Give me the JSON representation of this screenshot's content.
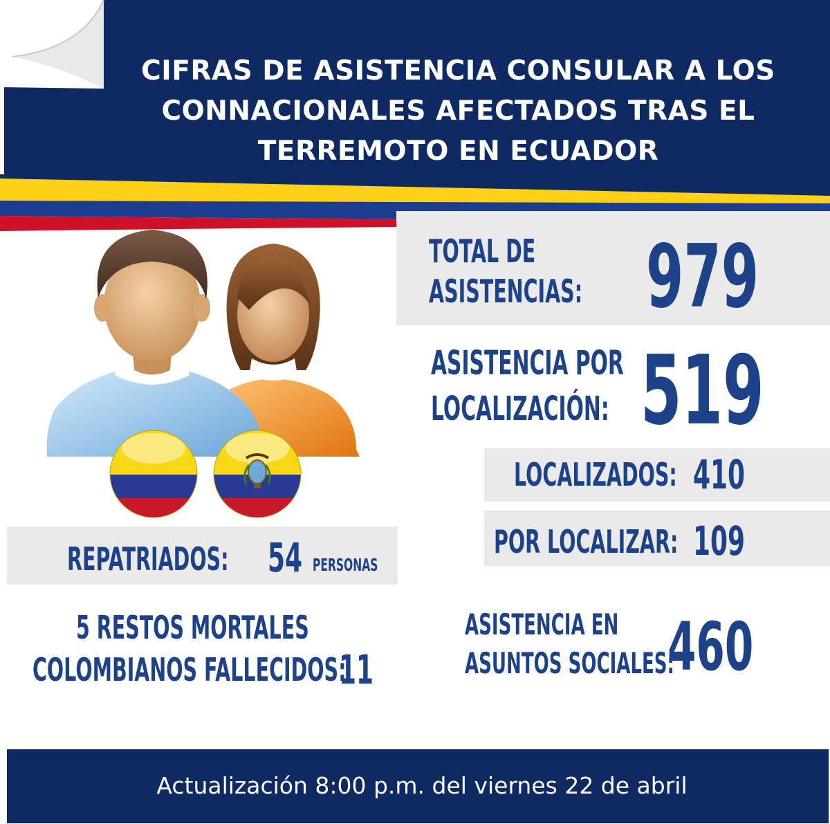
{
  "header": {
    "title_lines": [
      "CIFRAS DE ASISTENCIA CONSULAR A LOS",
      "CONNACIONALES AFECTADOS TRAS EL",
      "TERREMOTO EN ECUADOR"
    ]
  },
  "stats": {
    "total": {
      "label_lines": [
        "TOTAL DE",
        "ASISTENCIAS:"
      ],
      "value": "979"
    },
    "localizacion": {
      "label_lines": [
        "ASISTENCIA POR",
        "LOCALIZACIÓN:"
      ],
      "value": "519"
    },
    "localizados": {
      "label": "LOCALIZADOS:",
      "value": "410"
    },
    "por_localizar": {
      "label": "POR LOCALIZAR:",
      "value": "109"
    },
    "repatriados": {
      "label": "REPATRIADOS:",
      "value": "54",
      "unit": "PERSONAS"
    },
    "restos": {
      "line1": "5 RESTOS MORTALES",
      "label": "COLOMBIANOS FALLECIDOS:",
      "value": "11"
    },
    "sociales": {
      "label_lines": [
        "ASISTENCIA EN",
        "ASUNTOS SOCIALES:"
      ],
      "value": "460"
    }
  },
  "footer": {
    "text": "Actualización 8:00 p.m. del viernes 22 de abril"
  },
  "colors": {
    "navy": "#0f2a63",
    "stat_blue": "#1d4289",
    "panel_gray": "#eaeaea",
    "flag_yellow": "#fcd116",
    "flag_blue": "#003893",
    "flag_red": "#ce1126"
  },
  "icons": [
    "people-icon",
    "colombia-flag-icon",
    "ecuador-flag-icon"
  ]
}
